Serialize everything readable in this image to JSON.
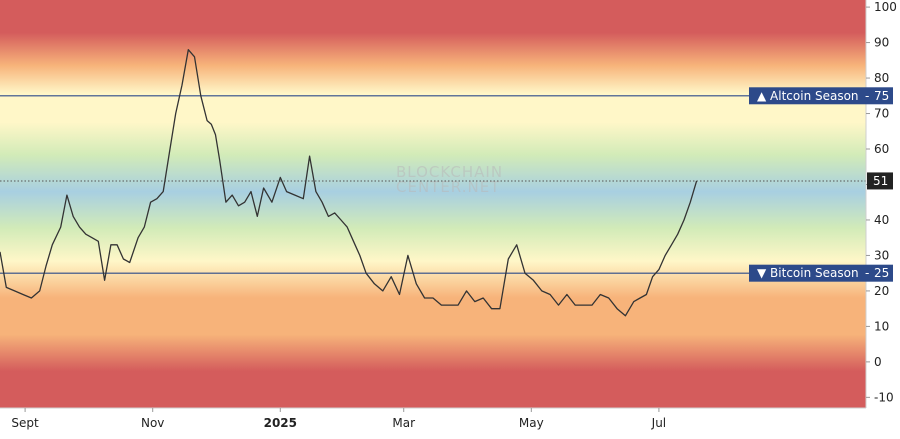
{
  "watermark": [
    "BLOCKCHAIN",
    "CENTER.NET"
  ],
  "colors": {
    "red": "#d45c5c",
    "orange": "#f7b37a",
    "yellow": "#fff7c8",
    "green": "#d2ebb8",
    "blue": "#a8cfe1",
    "line": "#333333",
    "badge": "#2d4a8a",
    "current_badge": "#222222"
  },
  "chart_data": {
    "type": "line",
    "title": "",
    "xlabel": "",
    "ylabel": "",
    "ylim": [
      -13,
      102
    ],
    "y_ticks": [
      100,
      90,
      80,
      70,
      60,
      50,
      40,
      30,
      20,
      10,
      0,
      -10
    ],
    "x_ticks": [
      {
        "label": "Sept",
        "date": "2024-09-01",
        "bold": false
      },
      {
        "label": "Nov",
        "date": "2024-11-01",
        "bold": false
      },
      {
        "label": "2025",
        "date": "2025-01-01",
        "bold": true
      },
      {
        "label": "Mar",
        "date": "2025-03-01",
        "bold": false
      },
      {
        "label": "May",
        "date": "2025-05-01",
        "bold": false
      },
      {
        "label": "Jul",
        "date": "2025-07-01",
        "bold": false
      }
    ],
    "xlim": [
      "2024-08-20",
      "2025-10-08"
    ],
    "thresholds": [
      {
        "label": "▲ Altcoin Season",
        "value": 75
      },
      {
        "label": "▼ Bitcoin Season",
        "value": 25
      }
    ],
    "current": {
      "value": 51
    },
    "series": [
      {
        "x": [
          "2024-08-20",
          "2024-08-23",
          "2024-08-27",
          "2024-08-31",
          "2024-09-04",
          "2024-09-08",
          "2024-09-11",
          "2024-09-14",
          "2024-09-18",
          "2024-09-21",
          "2024-09-24",
          "2024-09-27",
          "2024-09-30",
          "2024-10-03",
          "2024-10-06",
          "2024-10-09",
          "2024-10-12",
          "2024-10-15",
          "2024-10-18",
          "2024-10-21",
          "2024-10-25",
          "2024-10-28",
          "2024-10-31",
          "2024-11-03",
          "2024-11-06",
          "2024-11-09",
          "2024-11-12",
          "2024-11-15",
          "2024-11-18",
          "2024-11-21",
          "2024-11-24",
          "2024-11-27",
          "2024-11-29",
          "2024-12-01",
          "2024-12-03",
          "2024-12-06",
          "2024-12-09",
          "2024-12-12",
          "2024-12-15",
          "2024-12-18",
          "2024-12-21",
          "2024-12-24",
          "2024-12-28",
          "2025-01-01",
          "2025-01-04",
          "2025-01-08",
          "2025-01-12",
          "2025-01-15",
          "2025-01-18",
          "2025-01-21",
          "2025-01-24",
          "2025-01-27",
          "2025-01-30",
          "2025-02-02",
          "2025-02-05",
          "2025-02-08",
          "2025-02-11",
          "2025-02-15",
          "2025-02-19",
          "2025-02-23",
          "2025-02-27",
          "2025-03-03",
          "2025-03-07",
          "2025-03-11",
          "2025-03-15",
          "2025-03-19",
          "2025-03-23",
          "2025-03-27",
          "2025-03-31",
          "2025-04-04",
          "2025-04-08",
          "2025-04-12",
          "2025-04-16",
          "2025-04-20",
          "2025-04-24",
          "2025-04-28",
          "2025-05-02",
          "2025-05-06",
          "2025-05-10",
          "2025-05-14",
          "2025-05-18",
          "2025-05-22",
          "2025-05-26",
          "2025-05-30",
          "2025-06-03",
          "2025-06-07",
          "2025-06-11",
          "2025-06-15",
          "2025-06-19",
          "2025-06-22",
          "2025-06-25",
          "2025-06-28",
          "2025-07-01",
          "2025-07-04",
          "2025-07-07",
          "2025-07-10",
          "2025-07-13",
          "2025-07-16",
          "2025-07-19"
        ],
        "y": [
          31,
          21,
          20,
          19,
          18,
          20,
          27,
          33,
          38,
          47,
          41,
          38,
          36,
          35,
          34,
          23,
          33,
          33,
          29,
          28,
          35,
          38,
          45,
          46,
          48,
          59,
          70,
          78,
          88,
          86,
          75,
          68,
          67,
          64,
          57,
          45,
          47,
          44,
          45,
          48,
          41,
          49,
          45,
          52,
          48,
          47,
          46,
          58,
          48,
          45,
          41,
          42,
          40,
          38,
          34,
          30,
          25,
          22,
          20,
          24,
          19,
          30,
          22,
          18,
          18,
          16,
          16,
          16,
          20,
          17,
          18,
          15,
          15,
          29,
          33,
          25,
          23,
          20,
          19,
          16,
          19,
          16,
          16,
          16,
          19,
          18,
          15,
          13,
          17,
          18,
          19,
          24,
          26,
          30,
          33,
          36,
          40,
          45,
          51
        ]
      }
    ]
  }
}
